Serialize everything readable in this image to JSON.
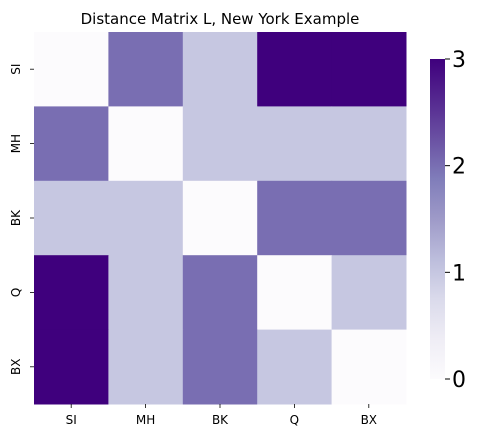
{
  "chart_data": {
    "type": "heatmap",
    "title": "Distance Matrix L, New York Example",
    "xlabel": "",
    "ylabel": "",
    "x_categories": [
      "SI",
      "MH",
      "BK",
      "Q",
      "BX"
    ],
    "y_categories": [
      "SI",
      "MH",
      "BK",
      "Q",
      "BX"
    ],
    "values": [
      [
        0,
        2,
        1,
        3,
        3
      ],
      [
        2,
        0,
        1,
        1,
        1
      ],
      [
        1,
        1,
        0,
        2,
        2
      ],
      [
        3,
        1,
        2,
        0,
        1
      ],
      [
        3,
        1,
        2,
        1,
        0
      ]
    ],
    "colormap": "Purples",
    "vmin": 0,
    "vmax": 3,
    "colorbar": {
      "ticks": [
        0,
        1,
        2,
        3
      ],
      "colors": [
        "#fcfbfd",
        "#efedf5",
        "#dadaeb",
        "#bcbddc",
        "#9e9ac8",
        "#807dba",
        "#6a51a3",
        "#54278f",
        "#3f007d"
      ]
    },
    "grid": false
  }
}
